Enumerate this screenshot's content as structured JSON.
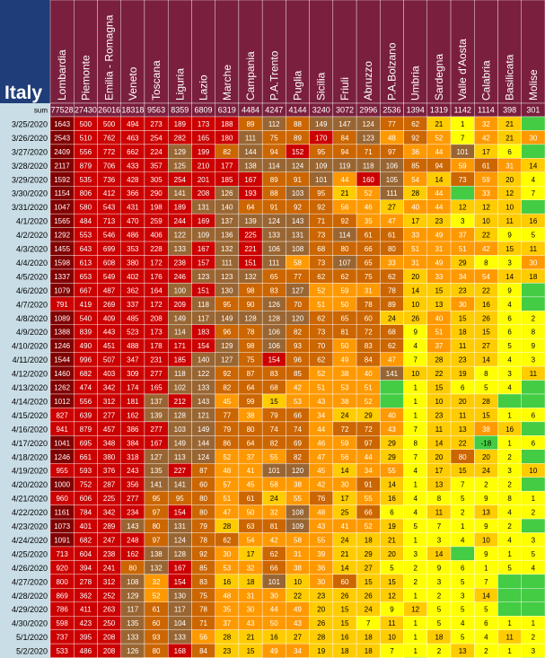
{
  "chart_data": {
    "type": "heatmap",
    "title": "Italy",
    "sum_label": "sum",
    "regions": [
      "Lombardia",
      "Piemonte",
      "Emilia - Romagna",
      "Veneto",
      "Toscana",
      "Liguria",
      "Lazio",
      "Marche",
      "Campania",
      "P.A.Trento",
      "Puglia",
      "Sicilia",
      "Friuli",
      "Abruzzo",
      "P.A.Bolzano",
      "Umbria",
      "Sardegna",
      "Valle d'Aosta",
      "Calabria",
      "Basilicata",
      "Molise"
    ],
    "sums": [
      "77528",
      "27430",
      "26016",
      "18318",
      "9563",
      "8359",
      "6809",
      "6319",
      "4484",
      "4247",
      "4144",
      "3240",
      "3072",
      "2996",
      "2536",
      "1394",
      "1319",
      "1142",
      "1114",
      "398",
      "301"
    ],
    "dates": [
      "3/25/2020",
      "3/26/2020",
      "3/27/2020",
      "3/28/2020",
      "3/29/2020",
      "3/30/2020",
      "3/31/2020",
      "4/1/2020",
      "4/2/2020",
      "4/3/2020",
      "4/4/2020",
      "4/5/2020",
      "4/6/2020",
      "4/7/2020",
      "4/8/2020",
      "4/9/2020",
      "4/10/2020",
      "4/11/2020",
      "4/12/2020",
      "4/13/2020",
      "4/14/2020",
      "4/15/2020",
      "4/16/2020",
      "4/17/2020",
      "4/18/2020",
      "4/19/2020",
      "4/20/2020",
      "4/21/2020",
      "4/22/2020",
      "4/23/2020",
      "4/24/2020",
      "4/25/2020",
      "4/26/2020",
      "4/27/2020",
      "4/28/2020",
      "4/29/2020",
      "4/30/2020",
      "5/1/2020",
      "5/2/2020",
      "5/3/2020"
    ],
    "values": [
      [
        "1643",
        "500",
        "500",
        "494",
        "273",
        "189",
        "173",
        "188",
        "89",
        "112",
        "88",
        "149",
        "147",
        "124",
        "77",
        "62",
        "21",
        "1",
        "32",
        "21",
        ""
      ],
      [
        "2543",
        "510",
        "762",
        "463",
        "254",
        "282",
        "165",
        "180",
        "111",
        "75",
        "89",
        "170",
        "84",
        "123",
        "48",
        "92",
        "52",
        "7",
        "42",
        "21",
        "30"
      ],
      [
        "2409",
        "556",
        "772",
        "662",
        "224",
        "129",
        "199",
        "82",
        "144",
        "94",
        "152",
        "95",
        "94",
        "71",
        "97",
        "36",
        "44",
        "101",
        "17",
        "6",
        ""
      ],
      [
        "2117",
        "879",
        "706",
        "433",
        "357",
        "125",
        "210",
        "177",
        "138",
        "114",
        "124",
        "109",
        "119",
        "118",
        "106",
        "85",
        "94",
        "59",
        "61",
        "31",
        "14"
      ],
      [
        "1592",
        "535",
        "736",
        "428",
        "305",
        "254",
        "201",
        "185",
        "167",
        "89",
        "91",
        "101",
        "44",
        "160",
        "105",
        "54",
        "14",
        "73",
        "59",
        "20",
        "4"
      ],
      [
        "1154",
        "806",
        "412",
        "366",
        "290",
        "141",
        "208",
        "126",
        "193",
        "88",
        "103",
        "95",
        "21",
        "52",
        "111",
        "28",
        "44",
        "",
        "33",
        "12",
        "7"
      ],
      [
        "1047",
        "580",
        "543",
        "431",
        "198",
        "189",
        "131",
        "140",
        "64",
        "91",
        "92",
        "92",
        "56",
        "46",
        "27",
        "40",
        "44",
        "12",
        "12",
        "10",
        ""
      ],
      [
        "1565",
        "484",
        "713",
        "470",
        "259",
        "244",
        "169",
        "137",
        "139",
        "124",
        "143",
        "71",
        "92",
        "35",
        "47",
        "17",
        "23",
        "3",
        "10",
        "11",
        "16"
      ],
      [
        "1292",
        "553",
        "546",
        "486",
        "406",
        "122",
        "109",
        "136",
        "225",
        "133",
        "131",
        "73",
        "114",
        "61",
        "61",
        "33",
        "49",
        "37",
        "22",
        "9",
        "5"
      ],
      [
        "1455",
        "643",
        "699",
        "353",
        "228",
        "133",
        "167",
        "132",
        "221",
        "106",
        "108",
        "68",
        "80",
        "66",
        "80",
        "51",
        "31",
        "51",
        "42",
        "15",
        "11"
      ],
      [
        "1598",
        "613",
        "608",
        "380",
        "172",
        "238",
        "157",
        "111",
        "151",
        "111",
        "58",
        "73",
        "107",
        "65",
        "33",
        "31",
        "49",
        "29",
        "8",
        "3",
        "30"
      ],
      [
        "1337",
        "653",
        "549",
        "402",
        "176",
        "246",
        "123",
        "123",
        "132",
        "65",
        "77",
        "62",
        "62",
        "75",
        "62",
        "20",
        "33",
        "34",
        "54",
        "14",
        "18"
      ],
      [
        "1079",
        "667",
        "487",
        "362",
        "164",
        "100",
        "151",
        "130",
        "98",
        "83",
        "127",
        "52",
        "59",
        "31",
        "78",
        "14",
        "15",
        "23",
        "22",
        "9",
        ""
      ],
      [
        "791",
        "419",
        "269",
        "337",
        "172",
        "209",
        "118",
        "95",
        "90",
        "126",
        "70",
        "51",
        "50",
        "78",
        "89",
        "10",
        "13",
        "30",
        "16",
        "4",
        ""
      ],
      [
        "1089",
        "540",
        "409",
        "485",
        "208",
        "149",
        "117",
        "149",
        "128",
        "128",
        "120",
        "62",
        "65",
        "60",
        "24",
        "26",
        "40",
        "15",
        "26",
        "6",
        "2"
      ],
      [
        "1388",
        "839",
        "443",
        "523",
        "173",
        "114",
        "183",
        "96",
        "78",
        "106",
        "82",
        "73",
        "81",
        "72",
        "68",
        "9",
        "51",
        "18",
        "15",
        "6",
        "8"
      ],
      [
        "1246",
        "490",
        "451",
        "488",
        "178",
        "171",
        "154",
        "129",
        "98",
        "106",
        "93",
        "70",
        "50",
        "83",
        "62",
        "4",
        "37",
        "11",
        "27",
        "5",
        "9"
      ],
      [
        "1544",
        "996",
        "507",
        "347",
        "231",
        "185",
        "140",
        "127",
        "75",
        "154",
        "96",
        "62",
        "49",
        "84",
        "47",
        "7",
        "28",
        "23",
        "14",
        "4",
        "3"
      ],
      [
        "1460",
        "682",
        "403",
        "309",
        "277",
        "118",
        "122",
        "92",
        "87",
        "83",
        "85",
        "52",
        "38",
        "40",
        "141",
        "10",
        "22",
        "19",
        "8",
        "3",
        "11"
      ],
      [
        "1262",
        "474",
        "342",
        "174",
        "165",
        "102",
        "133",
        "82",
        "64",
        "68",
        "42",
        "51",
        "53",
        "51",
        "",
        "1",
        "15",
        "6",
        "5",
        "4",
        ""
      ],
      [
        "1012",
        "556",
        "312",
        "181",
        "137",
        "212",
        "143",
        "45",
        "99",
        "15",
        "53",
        "43",
        "38",
        "52",
        "",
        "1",
        "10",
        "20",
        "28",
        "",
        ""
      ],
      [
        "827",
        "639",
        "277",
        "162",
        "139",
        "128",
        "121",
        "77",
        "38",
        "79",
        "66",
        "34",
        "24",
        "29",
        "40",
        "1",
        "23",
        "11",
        "15",
        "1",
        "6"
      ],
      [
        "941",
        "879",
        "457",
        "386",
        "277",
        "103",
        "149",
        "79",
        "80",
        "74",
        "74",
        "44",
        "72",
        "72",
        "43",
        "7",
        "11",
        "13",
        "38",
        "16",
        ""
      ],
      [
        "1041",
        "695",
        "348",
        "384",
        "167",
        "149",
        "144",
        "86",
        "64",
        "82",
        "69",
        "46",
        "59",
        "97",
        "29",
        "8",
        "14",
        "22",
        "-18",
        "1",
        "6"
      ],
      [
        "1246",
        "661",
        "380",
        "318",
        "127",
        "113",
        "124",
        "52",
        "37",
        "55",
        "82",
        "47",
        "56",
        "44",
        "29",
        "7",
        "20",
        "80",
        "20",
        "2",
        ""
      ],
      [
        "955",
        "593",
        "376",
        "243",
        "135",
        "227",
        "87",
        "48",
        "41",
        "101",
        "120",
        "45",
        "14",
        "34",
        "55",
        "4",
        "17",
        "15",
        "24",
        "3",
        "10"
      ],
      [
        "1000",
        "752",
        "287",
        "356",
        "141",
        "141",
        "60",
        "57",
        "45",
        "58",
        "38",
        "42",
        "30",
        "91",
        "14",
        "1",
        "13",
        "7",
        "2",
        "2",
        ""
      ],
      [
        "960",
        "606",
        "225",
        "277",
        "95",
        "95",
        "80",
        "51",
        "61",
        "24",
        "55",
        "76",
        "17",
        "55",
        "16",
        "4",
        "8",
        "5",
        "9",
        "8",
        "1"
      ],
      [
        "1161",
        "784",
        "342",
        "234",
        "97",
        "154",
        "80",
        "47",
        "50",
        "32",
        "108",
        "48",
        "25",
        "66",
        "6",
        "4",
        "11",
        "2",
        "13",
        "4",
        "2"
      ],
      [
        "1073",
        "401",
        "289",
        "143",
        "80",
        "131",
        "79",
        "28",
        "63",
        "81",
        "109",
        "43",
        "41",
        "52",
        "19",
        "5",
        "7",
        "1",
        "9",
        "2",
        ""
      ],
      [
        "1091",
        "682",
        "247",
        "248",
        "97",
        "124",
        "78",
        "62",
        "54",
        "42",
        "58",
        "55",
        "24",
        "18",
        "21",
        "1",
        "3",
        "4",
        "10",
        "4",
        "3"
      ],
      [
        "713",
        "604",
        "238",
        "162",
        "138",
        "128",
        "92",
        "30",
        "17",
        "62",
        "31",
        "39",
        "21",
        "29",
        "20",
        "3",
        "14",
        "",
        "9",
        "1",
        "5"
      ],
      [
        "920",
        "394",
        "241",
        "80",
        "132",
        "167",
        "85",
        "53",
        "32",
        "66",
        "38",
        "36",
        "14",
        "27",
        "5",
        "2",
        "9",
        "6",
        "1",
        "5",
        "4"
      ],
      [
        "800",
        "278",
        "312",
        "108",
        "32",
        "154",
        "83",
        "16",
        "18",
        "101",
        "10",
        "30",
        "60",
        "15",
        "15",
        "2",
        "3",
        "5",
        "7",
        "",
        ""
      ],
      [
        "869",
        "362",
        "252",
        "129",
        "52",
        "130",
        "75",
        "48",
        "31",
        "30",
        "22",
        "23",
        "26",
        "26",
        "12",
        "1",
        "2",
        "3",
        "14",
        "",
        ""
      ],
      [
        "786",
        "411",
        "263",
        "117",
        "61",
        "117",
        "78",
        "35",
        "30",
        "44",
        "49",
        "20",
        "15",
        "24",
        "9",
        "12",
        "5",
        "5",
        "5",
        "",
        ""
      ],
      [
        "598",
        "423",
        "250",
        "135",
        "60",
        "104",
        "71",
        "37",
        "43",
        "50",
        "43",
        "26",
        "15",
        "7",
        "11",
        "1",
        "5",
        "4",
        "6",
        "1",
        "1"
      ],
      [
        "737",
        "395",
        "208",
        "133",
        "93",
        "133",
        "56",
        "28",
        "21",
        "16",
        "27",
        "28",
        "16",
        "18",
        "10",
        "1",
        "18",
        "5",
        "4",
        "11",
        "2"
      ],
      [
        "533",
        "486",
        "208",
        "126",
        "80",
        "168",
        "84",
        "23",
        "15",
        "49",
        "34",
        "19",
        "18",
        "18",
        "7",
        "1",
        "2",
        "13",
        "2",
        "1",
        "3"
      ],
      [
        "526",
        "261",
        "186",
        "94",
        "38",
        "47",
        "53",
        "21",
        "25",
        "66",
        "11",
        "27",
        "13",
        "32",
        "1",
        "",
        "4",
        "6",
        "2",
        "6",
        ""
      ]
    ]
  }
}
